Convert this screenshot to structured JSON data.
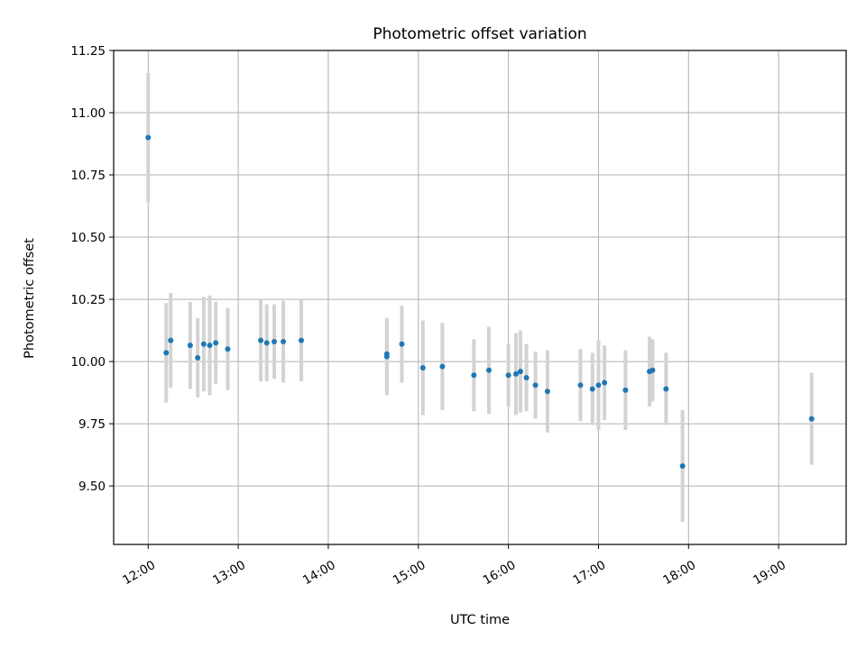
{
  "chart_data": {
    "type": "scatter",
    "title": "Photometric offset variation",
    "xlabel": "UTC time",
    "ylabel": "Photometric offset",
    "xlim": [
      "11:37",
      "19:45"
    ],
    "ylim": [
      9.265,
      11.25
    ],
    "x_ticks": [
      "12:00",
      "13:00",
      "14:00",
      "15:00",
      "16:00",
      "17:00",
      "18:00",
      "19:00"
    ],
    "y_ticks": [
      "9.50",
      "9.75",
      "10.00",
      "10.25",
      "10.50",
      "10.75",
      "11.00",
      "11.25"
    ],
    "grid": true,
    "marker_color": "#1f77b4",
    "errorbar_color": "#d3d3d3",
    "points": [
      {
        "x": "12:00",
        "y": 10.9,
        "err": 0.26
      },
      {
        "x": "12:12",
        "y": 10.035,
        "err": 0.2
      },
      {
        "x": "12:15",
        "y": 10.085,
        "err": 0.19
      },
      {
        "x": "12:28",
        "y": 10.065,
        "err": 0.175
      },
      {
        "x": "12:33",
        "y": 10.015,
        "err": 0.16
      },
      {
        "x": "12:37",
        "y": 10.07,
        "err": 0.19
      },
      {
        "x": "12:41",
        "y": 10.065,
        "err": 0.2
      },
      {
        "x": "12:45",
        "y": 10.075,
        "err": 0.165
      },
      {
        "x": "12:53",
        "y": 10.05,
        "err": 0.165
      },
      {
        "x": "13:15",
        "y": 10.085,
        "err": 0.165
      },
      {
        "x": "13:19",
        "y": 10.075,
        "err": 0.155
      },
      {
        "x": "13:24",
        "y": 10.08,
        "err": 0.15
      },
      {
        "x": "13:30",
        "y": 10.08,
        "err": 0.165
      },
      {
        "x": "13:42",
        "y": 10.085,
        "err": 0.165
      },
      {
        "x": "14:39",
        "y": 10.03,
        "err": 0.145
      },
      {
        "x": "14:39",
        "y": 10.02,
        "err": 0.155
      },
      {
        "x": "14:49",
        "y": 10.07,
        "err": 0.155
      },
      {
        "x": "15:03",
        "y": 9.975,
        "err": 0.19
      },
      {
        "x": "15:16",
        "y": 9.98,
        "err": 0.175
      },
      {
        "x": "15:37",
        "y": 9.945,
        "err": 0.145
      },
      {
        "x": "15:47",
        "y": 9.965,
        "err": 0.175
      },
      {
        "x": "16:00",
        "y": 9.945,
        "err": 0.125
      },
      {
        "x": "16:05",
        "y": 9.95,
        "err": 0.165
      },
      {
        "x": "16:08",
        "y": 9.96,
        "err": 0.165
      },
      {
        "x": "16:12",
        "y": 9.935,
        "err": 0.135
      },
      {
        "x": "16:18",
        "y": 9.905,
        "err": 0.135
      },
      {
        "x": "16:26",
        "y": 9.88,
        "err": 0.165
      },
      {
        "x": "16:48",
        "y": 9.905,
        "err": 0.145
      },
      {
        "x": "16:56",
        "y": 9.89,
        "err": 0.145
      },
      {
        "x": "17:00",
        "y": 9.905,
        "err": 0.18
      },
      {
        "x": "17:04",
        "y": 9.915,
        "err": 0.15
      },
      {
        "x": "17:18",
        "y": 9.885,
        "err": 0.16
      },
      {
        "x": "17:34",
        "y": 9.96,
        "err": 0.14
      },
      {
        "x": "17:36",
        "y": 9.965,
        "err": 0.125
      },
      {
        "x": "17:45",
        "y": 9.89,
        "err": 0.145
      },
      {
        "x": "17:56",
        "y": 9.58,
        "err": 0.225
      },
      {
        "x": "19:22",
        "y": 9.77,
        "err": 0.185
      }
    ]
  }
}
